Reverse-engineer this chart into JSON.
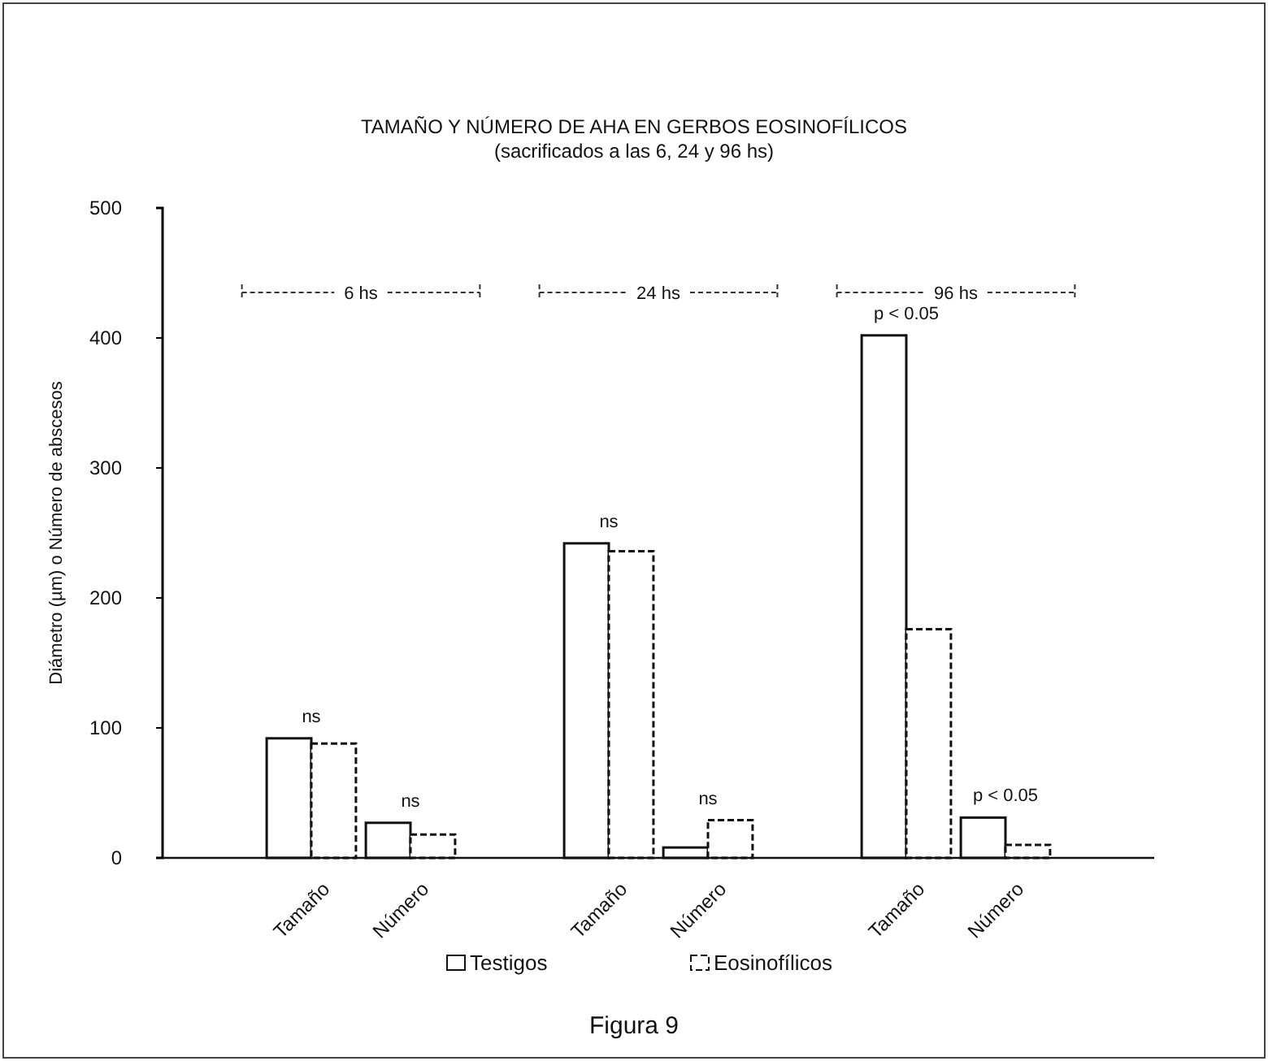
{
  "chart_data": {
    "type": "bar",
    "title": "TAMAÑO Y NÚMERO DE AHA EN GERBOS EOSINOFÍLICOS",
    "subtitle": "(sacrificados a las 6, 24 y 96 hs)",
    "ylabel": "Diámetro (µm) o Número de abscesos",
    "categories": [
      null,
      "Tamaño",
      "Número",
      null,
      "Tamaño",
      "Número",
      null,
      "Tamaño",
      "Número",
      null
    ],
    "series": [
      {
        "name": "Testigos",
        "color": "#ffffff",
        "values": [
          null,
          92,
          27,
          null,
          242,
          8,
          null,
          402,
          31,
          null
        ]
      },
      {
        "name": "Eosinofílicos",
        "color": "#ffffff",
        "values": [
          null,
          88,
          18,
          null,
          236,
          29,
          null,
          176,
          10,
          null
        ]
      }
    ],
    "ylim": [
      0,
      500
    ],
    "yticks": [
      0,
      100,
      200,
      300,
      400,
      500
    ],
    "grid": false,
    "legend": "bottom",
    "annotations": [
      "6 hs",
      "24 hs",
      "96 hs",
      "ns",
      "ns",
      "ns",
      "ns",
      "p < 0.05",
      "p < 0.05",
      "Figura 9"
    ]
  }
}
